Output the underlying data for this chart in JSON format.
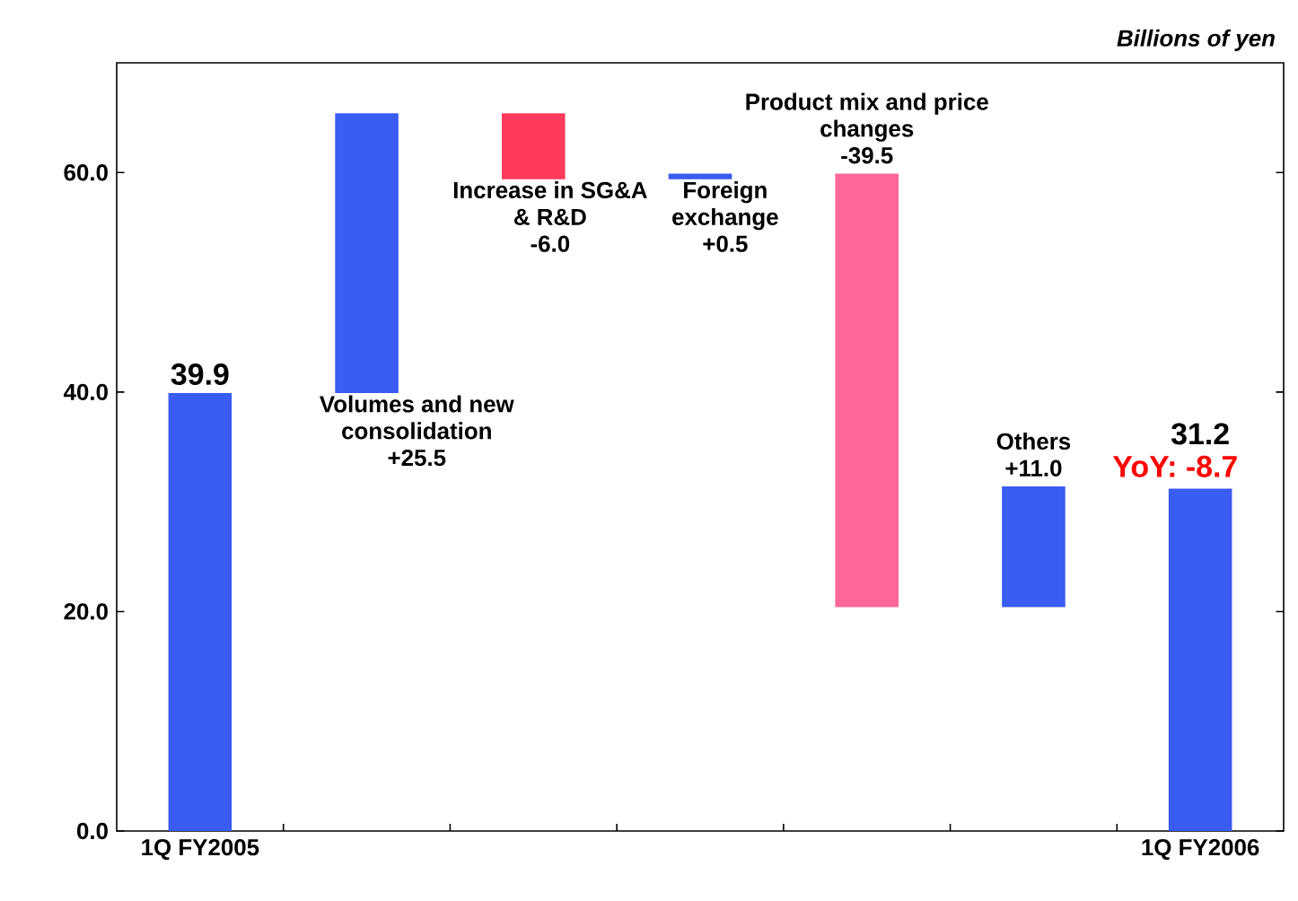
{
  "chart_data": {
    "type": "bar",
    "ylabel": "Billions of yen",
    "categories": [
      "1Q FY2005",
      null,
      null,
      null,
      null,
      null,
      "1Q FY2006"
    ],
    "base": [
      0,
      39.9,
      65.4,
      59.4,
      59.9,
      20.4,
      0
    ],
    "values": [
      39.9,
      25.5,
      -6.0,
      0.5,
      -39.5,
      11.0,
      31.2
    ],
    "colors": [
      "#3a5cf0",
      "#3a5cf0",
      "#ff3a5c",
      "#3a5cf0",
      "#ff6699",
      "#3a5cf0",
      "#3a5cf0"
    ],
    "value_labels": [
      "39.9",
      "+25.5",
      "-6.0",
      "+0.5",
      "-39.5",
      "+11.0",
      "31.2"
    ],
    "annotations": [
      "Volumes and new consolidation",
      "Increase in SG&A & R&D",
      "Foreign exchange",
      "Product mix and price changes",
      "Others",
      "YoY: -8.7"
    ],
    "ylim": [
      0,
      70
    ],
    "yticks": [
      {
        "value": 0,
        "label": "0.0"
      },
      {
        "value": 20,
        "label": "20.0"
      },
      {
        "value": 40,
        "label": "40.0"
      },
      {
        "value": 60,
        "label": "60.0"
      }
    ]
  }
}
